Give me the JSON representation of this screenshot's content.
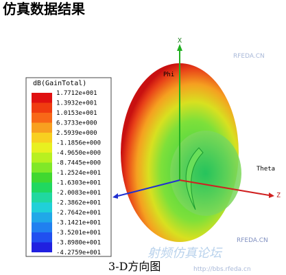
{
  "header": {
    "title": "仿真数据结果"
  },
  "legend": {
    "title": "dB(GainTotal)",
    "labels": [
      "1.7712e+001",
      "1.3932e+001",
      "1.0153e+001",
      "6.3733e+000",
      "2.5939e+000",
      "-1.1856e+000",
      "-4.9650e+000",
      "-8.7445e+000",
      "-1.2524e+001",
      "-1.6303e+001",
      "-2.0083e+001",
      "-2.3862e+001",
      "-2.7642e+001",
      "-3.1421e+001",
      "-3.5201e+001",
      "-3.8980e+001",
      "-4.2759e+001"
    ]
  },
  "axes": {
    "x": "X",
    "phi": "Phi",
    "theta": "Theta",
    "z": "Z"
  },
  "caption": "3-D方向图",
  "watermark": {
    "site": "RFEDA.CN",
    "forum": "射频仿真论坛",
    "url": "http://bbs.rfeda.cn"
  }
}
